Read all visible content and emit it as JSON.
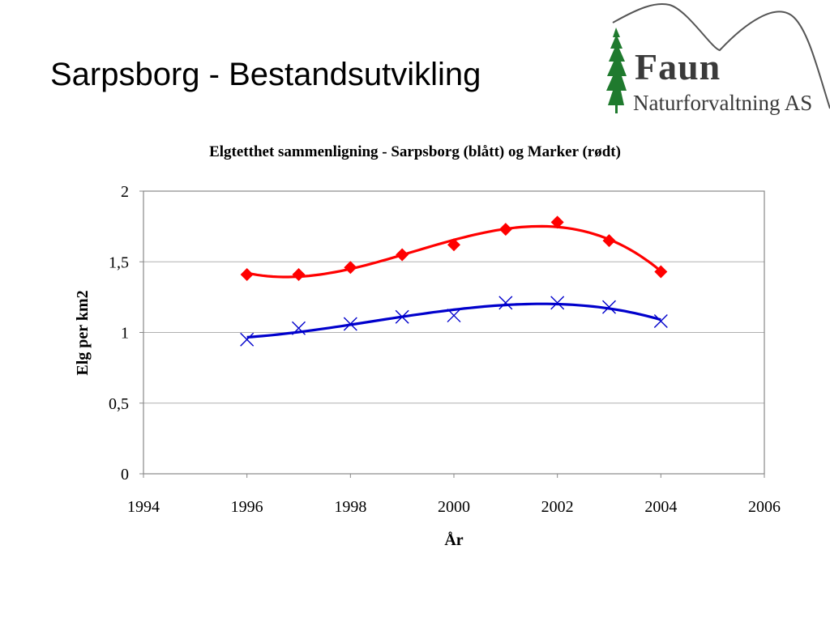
{
  "slide": {
    "title": "Sarpsborg - Bestandsutvikling"
  },
  "logo": {
    "name": "Faun",
    "subtitle": "Naturforvaltning AS",
    "tree_color": "#1f7a2e"
  },
  "chart_data": {
    "type": "scatter",
    "title": "Elgtetthet sammenligning - Sarpsborg (blått) og Marker (rødt)",
    "xlabel": "År",
    "ylabel": "Elg per km2",
    "xlim": [
      1994,
      2006
    ],
    "ylim": [
      0,
      2
    ],
    "xticks": [
      1994,
      1996,
      1998,
      2000,
      2002,
      2004,
      2006
    ],
    "xtick_labels": [
      "1994",
      "1996",
      "1998",
      "2000",
      "2002",
      "2004",
      "2006"
    ],
    "yticks": [
      0,
      0.5,
      1,
      1.5,
      2
    ],
    "ytick_labels": [
      "0",
      "0,5",
      "1",
      "1,5",
      "2"
    ],
    "grid": "horizontal",
    "legend": "none",
    "trendline": "polynomial",
    "series": [
      {
        "marker": "diamond",
        "color": "#ff0000",
        "x": [
          1996,
          1997,
          1998,
          1999,
          2000,
          2001,
          2002,
          2003,
          2004
        ],
        "y": [
          1.41,
          1.41,
          1.46,
          1.55,
          1.62,
          1.73,
          1.78,
          1.65,
          1.43
        ]
      },
      {
        "marker": "x",
        "color": "#0000cc",
        "x": [
          1996,
          1997,
          1998,
          1999,
          2000,
          2001,
          2002,
          2003,
          2004
        ],
        "y": [
          0.95,
          1.03,
          1.06,
          1.11,
          1.12,
          1.21,
          1.21,
          1.18,
          1.08
        ]
      }
    ]
  }
}
